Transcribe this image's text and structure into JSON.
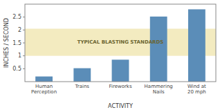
{
  "chart_data": {
    "type": "bar",
    "categories": [
      "Human\nPerception",
      "Trains",
      "Fireworks",
      "Hammering\nNails",
      "Wind at\n20 mph"
    ],
    "values": [
      0.2,
      0.52,
      0.85,
      2.52,
      2.8
    ],
    "color": "#5b8db8",
    "xlabel": "ACTIVITY",
    "ylabel": "INCHES / SECOND",
    "ylim": [
      0,
      3.0
    ],
    "yticks": [
      0.5,
      1.0,
      1.5,
      2.0,
      2.5
    ],
    "grid": false,
    "band": {
      "ymin": 1.0,
      "ymax": 2.05,
      "label": "TYPICAL BLASTING STANDARDS"
    }
  }
}
